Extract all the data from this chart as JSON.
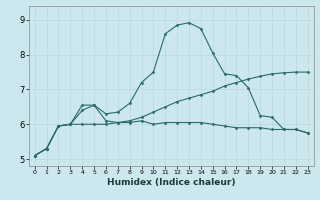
{
  "title": "",
  "xlabel": "Humidex (Indice chaleur)",
  "bg_color": "#cce8ee",
  "line_color": "#2a6b65",
  "grid_color": "#b8d8de",
  "xlim": [
    -0.5,
    23.5
  ],
  "ylim": [
    4.8,
    9.4
  ],
  "xticks": [
    0,
    1,
    2,
    3,
    4,
    5,
    6,
    7,
    8,
    9,
    10,
    11,
    12,
    13,
    14,
    15,
    16,
    17,
    18,
    19,
    20,
    21,
    22,
    23
  ],
  "yticks": [
    5,
    6,
    7,
    8,
    9
  ],
  "curve1_x": [
    0,
    1,
    2,
    3,
    4,
    5,
    6,
    7,
    8,
    9,
    10,
    11,
    12,
    13,
    14,
    15,
    16,
    17,
    18,
    19,
    20,
    21,
    22,
    23
  ],
  "curve1_y": [
    5.1,
    5.3,
    5.95,
    6.0,
    6.4,
    6.55,
    6.1,
    6.05,
    6.05,
    6.1,
    6.0,
    6.05,
    6.05,
    6.05,
    6.05,
    6.0,
    5.95,
    5.9,
    5.9,
    5.9,
    5.85,
    5.85,
    5.85,
    5.75
  ],
  "curve2_x": [
    0,
    1,
    2,
    3,
    4,
    5,
    6,
    7,
    8,
    9,
    10,
    11,
    12,
    13,
    14,
    15,
    16,
    17,
    18,
    19,
    20,
    21,
    22,
    23
  ],
  "curve2_y": [
    5.1,
    5.3,
    5.95,
    6.0,
    6.55,
    6.55,
    6.3,
    6.35,
    6.6,
    7.2,
    7.5,
    8.6,
    8.85,
    8.92,
    8.75,
    8.05,
    7.45,
    7.4,
    7.05,
    6.25,
    6.2,
    5.85,
    5.85,
    5.75
  ],
  "curve3_x": [
    0,
    1,
    2,
    3,
    4,
    5,
    6,
    7,
    8,
    9,
    10,
    11,
    12,
    13,
    14,
    15,
    16,
    17,
    18,
    19,
    20,
    21,
    22,
    23
  ],
  "curve3_y": [
    5.1,
    5.3,
    5.95,
    6.0,
    6.0,
    6.0,
    6.0,
    6.05,
    6.1,
    6.2,
    6.35,
    6.5,
    6.65,
    6.75,
    6.85,
    6.95,
    7.1,
    7.2,
    7.3,
    7.38,
    7.45,
    7.48,
    7.5,
    7.5
  ]
}
